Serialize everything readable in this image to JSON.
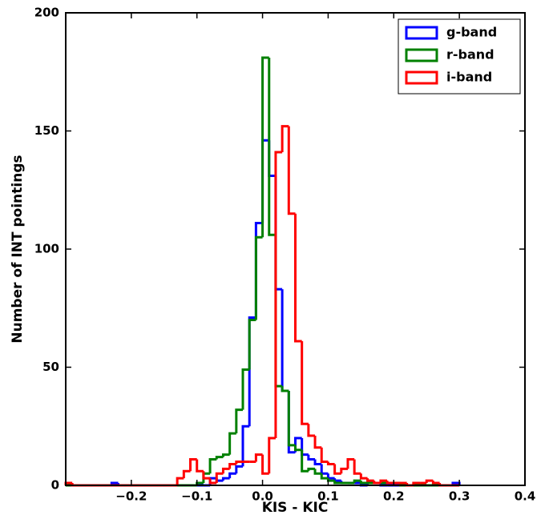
{
  "chart_data": {
    "type": "histogram",
    "xlabel": "KIS - KIC",
    "ylabel": "Number of INT pointings",
    "bins": [
      -0.3,
      -0.29,
      -0.28,
      -0.27,
      -0.26,
      -0.25,
      -0.24,
      -0.23,
      -0.22,
      -0.21,
      -0.2,
      -0.19,
      -0.18,
      -0.17,
      -0.16,
      -0.15,
      -0.14,
      -0.13,
      -0.12,
      -0.11,
      -0.1,
      -0.09,
      -0.08,
      -0.07,
      -0.06,
      -0.05,
      -0.04,
      -0.03,
      -0.02,
      -0.01,
      0,
      0.01,
      0.02,
      0.03,
      0.04,
      0.05,
      0.06,
      0.07,
      0.08,
      0.09,
      0.1,
      0.11,
      0.12,
      0.13,
      0.14,
      0.15,
      0.16,
      0.17,
      0.18,
      0.19,
      0.2,
      0.21,
      0.22,
      0.23,
      0.24,
      0.25,
      0.26,
      0.27,
      0.28,
      0.29,
      0.3
    ],
    "series": [
      {
        "name": "g-band",
        "color": "#0000ff",
        "values": [
          0,
          0,
          0,
          0,
          0,
          0,
          0,
          1,
          0,
          0,
          0,
          0,
          0,
          0,
          0,
          0,
          0,
          0,
          0,
          0,
          0,
          0,
          3,
          2,
          3,
          5,
          8,
          25,
          71,
          111,
          146,
          131,
          83,
          40,
          14,
          20,
          13,
          11,
          9,
          5,
          3,
          2,
          1,
          1,
          1,
          0,
          1,
          1,
          0,
          0,
          0,
          0,
          0,
          0,
          0,
          0,
          0,
          0,
          0,
          1
        ]
      },
      {
        "name": "r-band",
        "color": "#008000",
        "values": [
          0,
          0,
          0,
          0,
          0,
          0,
          0,
          0,
          0,
          0,
          0,
          0,
          0,
          0,
          0,
          0,
          0,
          0,
          0,
          0,
          1,
          5,
          11,
          12,
          13,
          22,
          32,
          49,
          70,
          105,
          181,
          106,
          42,
          40,
          17,
          15,
          6,
          7,
          5,
          3,
          2,
          1,
          1,
          1,
          2,
          1,
          1,
          1,
          1,
          1,
          1,
          0,
          0,
          0,
          0,
          0,
          0,
          0,
          0,
          0
        ]
      },
      {
        "name": "i-band",
        "color": "#ff0000",
        "values": [
          1,
          0,
          0,
          0,
          0,
          0,
          0,
          0,
          0,
          0,
          0,
          0,
          0,
          0,
          0,
          0,
          0,
          3,
          6,
          11,
          6,
          3,
          1,
          5,
          7,
          9,
          10,
          10,
          10,
          13,
          5,
          20,
          141,
          152,
          115,
          61,
          26,
          21,
          16,
          10,
          9,
          5,
          7,
          11,
          5,
          3,
          2,
          1,
          2,
          1,
          1,
          1,
          0,
          1,
          1,
          2,
          1,
          0,
          0,
          0
        ]
      }
    ],
    "xlim": [
      -0.3,
      0.4
    ],
    "ylim": [
      0,
      200
    ],
    "xticks": [
      {
        "value": -0.2,
        "label": "−0.2"
      },
      {
        "value": -0.1,
        "label": "−0.1"
      },
      {
        "value": 0,
        "label": "0.0"
      },
      {
        "value": 0.1,
        "label": "0.1"
      },
      {
        "value": 0.2,
        "label": "0.2"
      },
      {
        "value": 0.3,
        "label": "0.3"
      },
      {
        "value": 0.4,
        "label": "0.4"
      }
    ],
    "yticks": [
      0,
      50,
      100,
      150,
      200
    ],
    "legend": "upper right"
  }
}
